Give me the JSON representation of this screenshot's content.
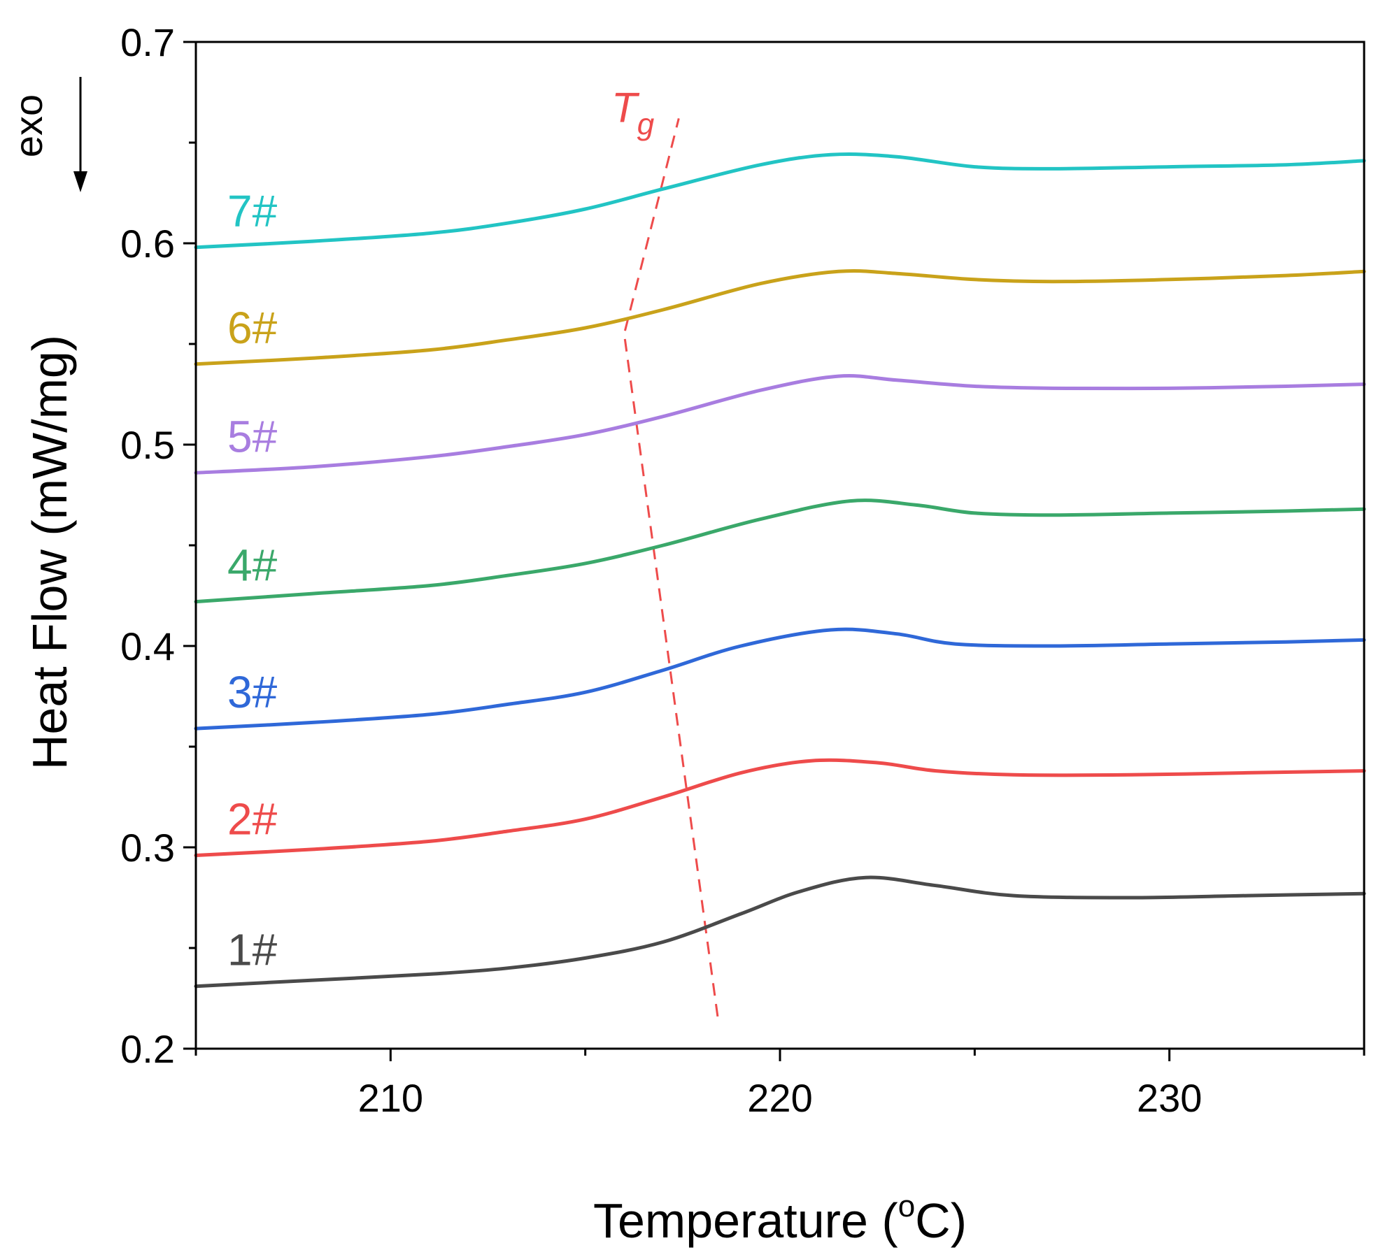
{
  "chart_data": {
    "type": "line",
    "title": "",
    "xlabel": "Temperature (",
    "xlabel_unit_sup": "o",
    "xlabel_unit_tail": "C)",
    "ylabel": "Heat Flow (mW/mg)",
    "exo_label": "exo",
    "xlim": [
      205,
      235
    ],
    "ylim": [
      0.2,
      0.7
    ],
    "xticks": [
      210,
      220,
      230
    ],
    "xtick_labels": [
      "210",
      "220",
      "230"
    ],
    "yticks": [
      0.2,
      0.3,
      0.4,
      0.5,
      0.6,
      0.7
    ],
    "ytick_labels": [
      "0.2",
      "0.3",
      "0.4",
      "0.5",
      "0.6",
      "0.7"
    ],
    "tg_line": {
      "label_main": "T",
      "label_sub": "g",
      "color": "#ee4b4b",
      "x": [
        218.4,
        216.0,
        217.4
      ],
      "y": [
        0.216,
        0.555,
        0.662
      ]
    },
    "series": [
      {
        "name": "1#",
        "color": "#4a4a4a",
        "x": [
          205,
          208,
          211,
          213,
          215,
          217,
          219,
          220.5,
          222.2,
          224,
          226,
          229,
          232,
          235
        ],
        "y": [
          0.231,
          0.234,
          0.237,
          0.24,
          0.245,
          0.253,
          0.267,
          0.278,
          0.285,
          0.281,
          0.276,
          0.275,
          0.276,
          0.277
        ]
      },
      {
        "name": "2#",
        "color": "#ee4b4b",
        "x": [
          205,
          208,
          211,
          213,
          215,
          217,
          219,
          220.8,
          222.5,
          224,
          226,
          229,
          232,
          235
        ],
        "y": [
          0.296,
          0.299,
          0.303,
          0.308,
          0.314,
          0.325,
          0.337,
          0.343,
          0.342,
          0.338,
          0.336,
          0.336,
          0.337,
          0.338
        ]
      },
      {
        "name": "3#",
        "color": "#2f68d8",
        "x": [
          205,
          208,
          211,
          213,
          215,
          217,
          219,
          221.3,
          223,
          224.5,
          227,
          230,
          233,
          235
        ],
        "y": [
          0.359,
          0.362,
          0.366,
          0.371,
          0.377,
          0.388,
          0.4,
          0.408,
          0.406,
          0.401,
          0.4,
          0.401,
          0.402,
          0.403
        ]
      },
      {
        "name": "4#",
        "color": "#3aa86a",
        "x": [
          205,
          208,
          211,
          213,
          215,
          217,
          219.5,
          221.8,
          223.5,
          225,
          227,
          230,
          233,
          235
        ],
        "y": [
          0.422,
          0.426,
          0.43,
          0.435,
          0.441,
          0.45,
          0.463,
          0.472,
          0.47,
          0.466,
          0.465,
          0.466,
          0.467,
          0.468
        ]
      },
      {
        "name": "5#",
        "color": "#a87de0",
        "x": [
          205,
          208,
          211,
          213,
          215,
          217,
          219.5,
          221.5,
          223,
          225,
          227,
          230,
          233,
          235
        ],
        "y": [
          0.486,
          0.489,
          0.494,
          0.499,
          0.505,
          0.514,
          0.527,
          0.534,
          0.532,
          0.529,
          0.528,
          0.528,
          0.529,
          0.53
        ]
      },
      {
        "name": "6#",
        "color": "#c9a21a",
        "x": [
          205,
          208,
          211,
          213,
          215,
          217,
          219.5,
          221.5,
          223,
          225,
          227,
          230,
          233,
          235
        ],
        "y": [
          0.54,
          0.543,
          0.547,
          0.552,
          0.558,
          0.567,
          0.58,
          0.586,
          0.585,
          0.582,
          0.581,
          0.582,
          0.584,
          0.586
        ]
      },
      {
        "name": "7#",
        "color": "#22c4c4",
        "x": [
          205,
          208,
          211,
          213,
          215,
          217,
          219.5,
          221.3,
          223,
          225,
          227,
          230,
          233,
          235
        ],
        "y": [
          0.598,
          0.601,
          0.605,
          0.61,
          0.617,
          0.627,
          0.639,
          0.644,
          0.643,
          0.638,
          0.637,
          0.638,
          0.639,
          0.641
        ]
      }
    ]
  }
}
